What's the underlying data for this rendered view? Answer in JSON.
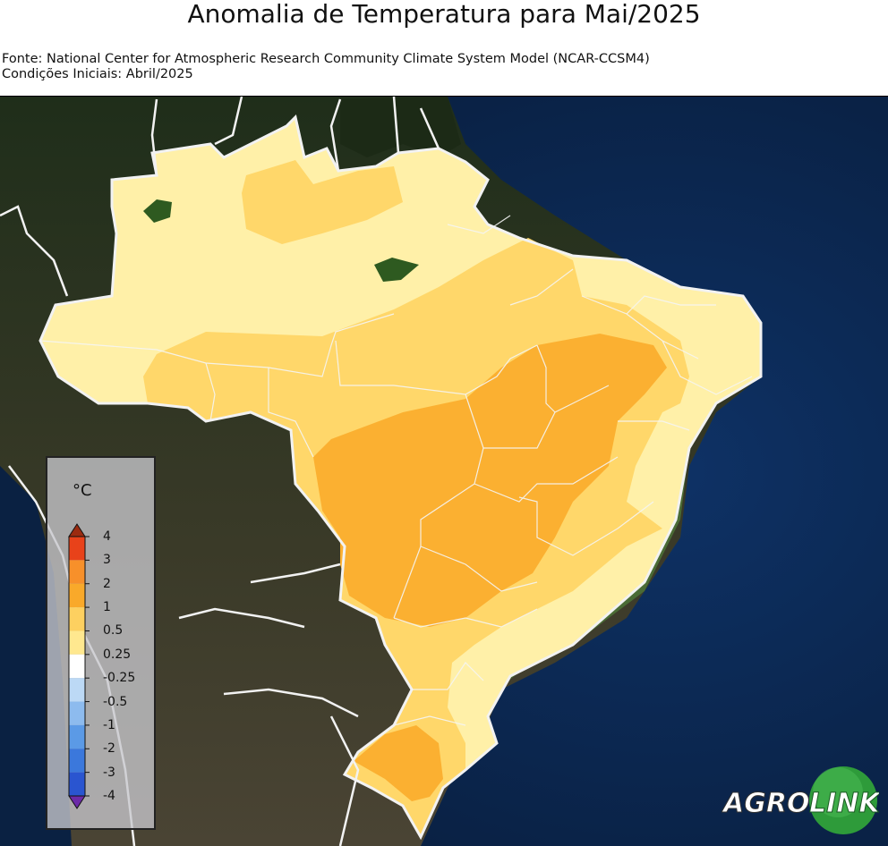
{
  "title": "Anomalia de Temperatura para Mai/2025",
  "source_line": "Fonte: National Center for Atmospheric Research Community Climate System Model (NCAR-CCSM4)",
  "initial_conditions": "Condições Iniciais: Abril/2025",
  "legend": {
    "unit": "°C",
    "ticks": [
      "4",
      "3",
      "2",
      "1",
      "0.5",
      "0.25",
      "-0.25",
      "-0.5",
      "-1",
      "-2",
      "-3",
      "-4"
    ],
    "colors": [
      "#e8421a",
      "#f7902a",
      "#f9a92a",
      "#fdd060",
      "#ffe88f",
      "#ffffff",
      "#bcd9f5",
      "#8dbbee",
      "#5b9ae6",
      "#3b78dc",
      "#2a55d0",
      "#6c2aa8"
    ]
  },
  "logo": {
    "text_agro": "AGRO",
    "text_link": "LINK",
    "accent": "#2e9b3a"
  },
  "colors": {
    "ocean": "#0d2547",
    "land": "#2d3a22",
    "anom_025_05": "#fff0a8",
    "anom_05_1": "#ffd76a",
    "anom_1_2": "#fbb031"
  }
}
